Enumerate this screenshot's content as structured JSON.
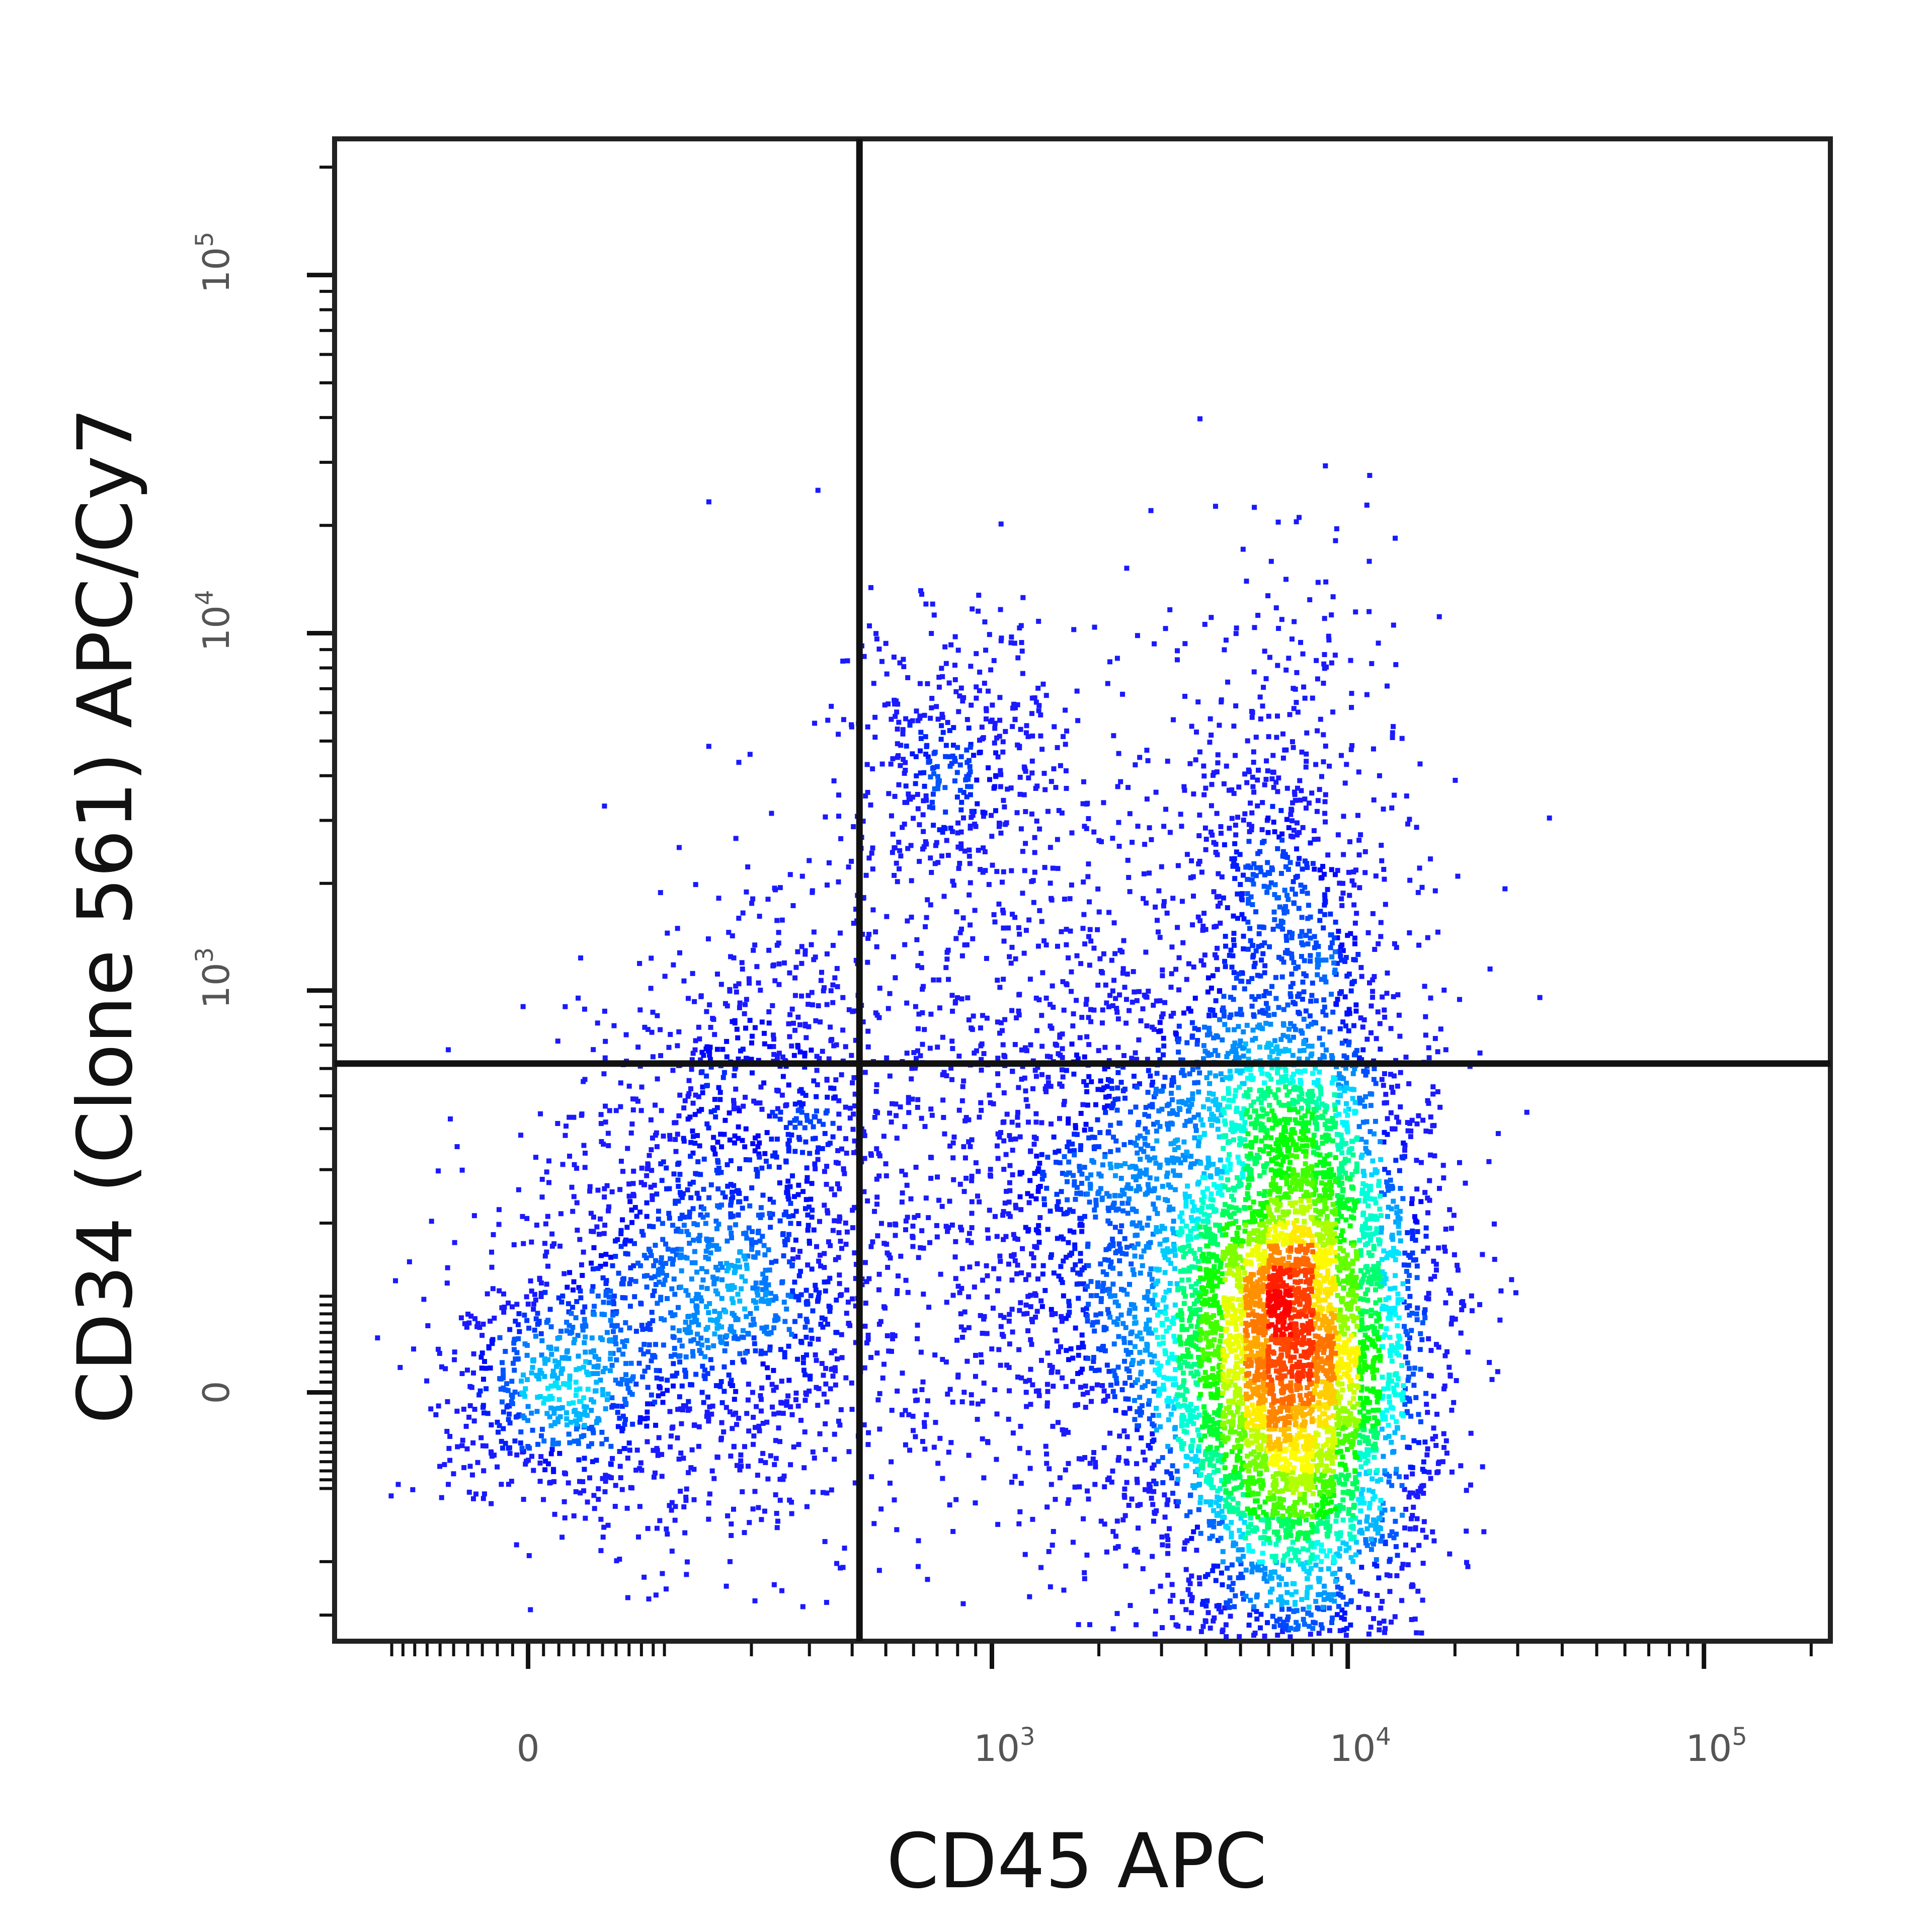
{
  "chart_data": {
    "type": "scatter",
    "subtype": "flow-cytometry density dot plot (pseudocolor)",
    "xlabel": "CD45 APC",
    "ylabel": "CD34 (Clone 561) APC/Cy7",
    "x_scale": "biexponential",
    "y_scale": "biexponential",
    "xlim": [
      -100,
      200000
    ],
    "ylim": [
      -300,
      250000
    ],
    "x_ticks": [
      {
        "value": 0,
        "base": "0",
        "exp": ""
      },
      {
        "value": 1000,
        "base": "10",
        "exp": "3"
      },
      {
        "value": 10000,
        "base": "10",
        "exp": "4"
      },
      {
        "value": 100000,
        "base": "10",
        "exp": "5"
      }
    ],
    "y_ticks": [
      {
        "value": 0,
        "base": "0",
        "exp": ""
      },
      {
        "value": 1000,
        "base": "10",
        "exp": "3"
      },
      {
        "value": 10000,
        "base": "10",
        "exp": "4"
      },
      {
        "value": 100000,
        "base": "10",
        "exp": "5"
      }
    ],
    "quadrant_gate": {
      "x": 420,
      "y": 620
    },
    "populations": [
      {
        "x": 7100,
        "y": 43,
        "spread_x_decades": 0.19,
        "spread_y_decades": 0.45,
        "count": 5200
      },
      {
        "x": 2240,
        "y": 176,
        "spread_x_decades": 0.28,
        "spread_y_decades": 0.45,
        "count": 1500
      },
      {
        "x": 159,
        "y": 109,
        "spread_x_decades": 0.28,
        "spread_y_decades": 0.35,
        "count": 1600
      },
      {
        "x": 12,
        "y": 0,
        "spread_x_decades": 0.15,
        "spread_y_decades": 0.15,
        "count": 450
      },
      {
        "x": 790,
        "y": 4170,
        "spread_x_decades": 0.16,
        "spread_y_decades": 0.21,
        "count": 420
      },
      {
        "x": 6800,
        "y": 1900,
        "spread_x_decades": 0.16,
        "spread_y_decades": 0.45,
        "count": 750
      },
      {
        "x": 1500,
        "y": 850,
        "spread_x_decades": 0.5,
        "spread_y_decades": 0.5,
        "count": 500
      },
      {
        "x": 245,
        "y": 680,
        "spread_x_decades": 0.18,
        "spread_y_decades": 0.22,
        "count": 300
      }
    ],
    "colormap": [
      "#0000ff",
      "#00ffff",
      "#00ff00",
      "#ffff00",
      "#ff0000"
    ],
    "grid": false,
    "legend": "none"
  }
}
